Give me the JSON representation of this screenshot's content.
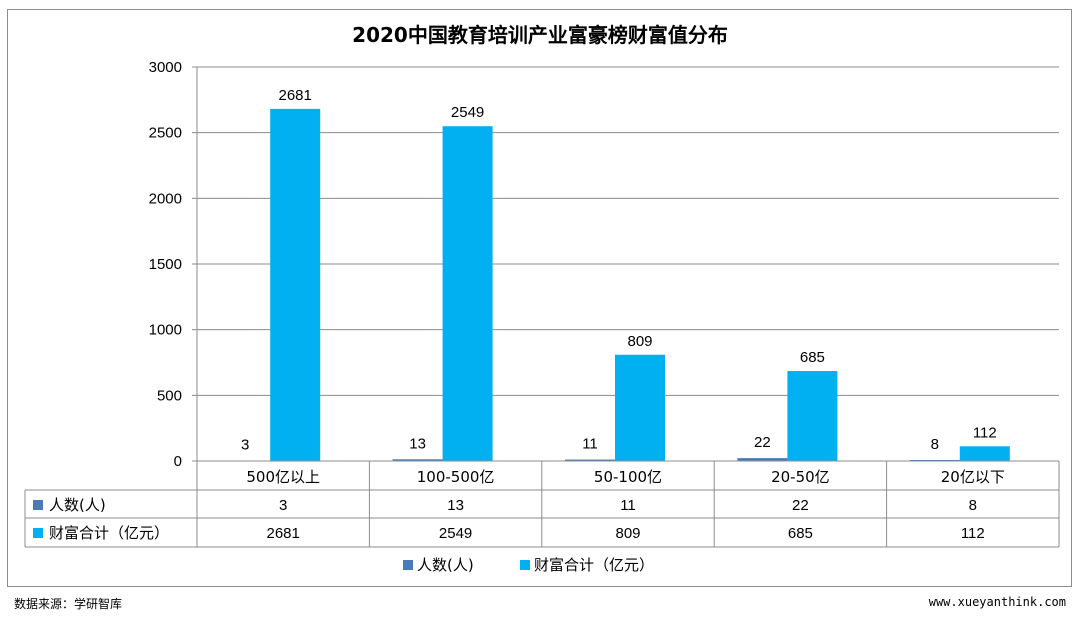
{
  "colors": {
    "series1": "#4a7ab8",
    "series2": "#00b0f0",
    "grid": "#8c8c8c",
    "axis": "#8c8c8c"
  },
  "chart_data": {
    "type": "bar",
    "title": "2020中国教育培训产业富豪榜财富值分布",
    "categories": [
      "500亿以上",
      "100-500亿",
      "50-100亿",
      "20-50亿",
      "20亿以下"
    ],
    "series": [
      {
        "name": "人数(人)",
        "values": [
          3,
          13,
          11,
          22,
          8
        ]
      },
      {
        "name": "财富合计（亿元）",
        "values": [
          2681,
          2549,
          809,
          685,
          112
        ]
      }
    ],
    "yticks": [
      0,
      500,
      1000,
      1500,
      2000,
      2500,
      3000
    ],
    "ylim": [
      0,
      3000
    ],
    "grid": true,
    "legend_position": "bottom",
    "data_table": true
  },
  "footer": {
    "source": "数据来源：学研智库",
    "website": "www.xueyanthink.com"
  }
}
